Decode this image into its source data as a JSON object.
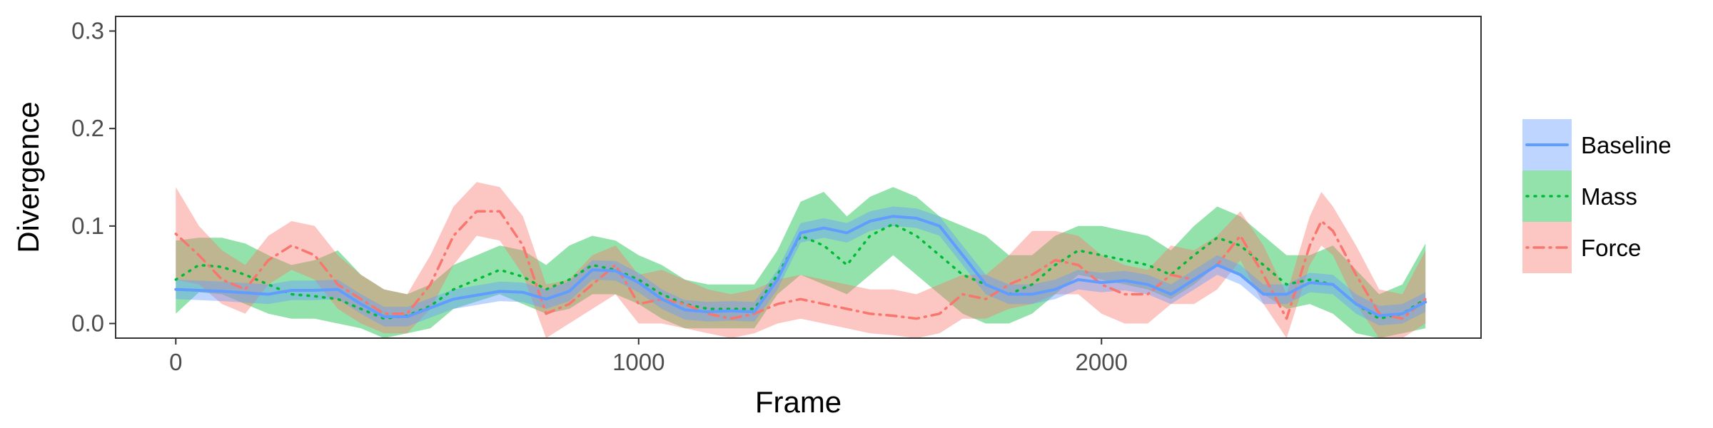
{
  "chart_data": {
    "type": "line",
    "xlabel": "Frame",
    "ylabel": "Divergence",
    "xlim": [
      -130,
      2820
    ],
    "ylim": [
      -0.015,
      0.315
    ],
    "x_ticks": [
      0,
      1000,
      2000
    ],
    "y_ticks": [
      0.0,
      0.1,
      0.2,
      0.3
    ],
    "x_tick_labels": [
      "0",
      "1000",
      "2000"
    ],
    "y_tick_labels": [
      "0.0",
      "0.1",
      "0.2",
      "0.3"
    ],
    "grid": false,
    "legend_position": "right",
    "series": [
      {
        "name": "Baseline",
        "color": "#619CFF",
        "line_style": "solid",
        "points": [
          [
            0,
            0.035,
            0.025,
            0.045
          ],
          [
            100,
            0.033,
            0.023,
            0.043
          ],
          [
            200,
            0.03,
            0.02,
            0.04
          ],
          [
            250,
            0.034,
            0.024,
            0.044
          ],
          [
            300,
            0.034,
            0.024,
            0.044
          ],
          [
            350,
            0.035,
            0.025,
            0.045
          ],
          [
            400,
            0.02,
            0.01,
            0.03
          ],
          [
            450,
            0.007,
            -0.003,
            0.017
          ],
          [
            500,
            0.007,
            -0.003,
            0.017
          ],
          [
            550,
            0.016,
            0.006,
            0.026
          ],
          [
            600,
            0.025,
            0.015,
            0.035
          ],
          [
            700,
            0.033,
            0.023,
            0.043
          ],
          [
            750,
            0.032,
            0.022,
            0.042
          ],
          [
            800,
            0.025,
            0.015,
            0.035
          ],
          [
            850,
            0.033,
            0.023,
            0.043
          ],
          [
            900,
            0.055,
            0.045,
            0.065
          ],
          [
            950,
            0.054,
            0.044,
            0.064
          ],
          [
            1000,
            0.042,
            0.032,
            0.052
          ],
          [
            1050,
            0.025,
            0.015,
            0.035
          ],
          [
            1100,
            0.014,
            0.004,
            0.024
          ],
          [
            1150,
            0.012,
            0.002,
            0.022
          ],
          [
            1200,
            0.013,
            0.003,
            0.023
          ],
          [
            1250,
            0.012,
            0.002,
            0.022
          ],
          [
            1300,
            0.045,
            0.035,
            0.055
          ],
          [
            1350,
            0.093,
            0.083,
            0.103
          ],
          [
            1400,
            0.098,
            0.088,
            0.108
          ],
          [
            1450,
            0.093,
            0.083,
            0.103
          ],
          [
            1500,
            0.105,
            0.095,
            0.115
          ],
          [
            1550,
            0.11,
            0.1,
            0.12
          ],
          [
            1600,
            0.108,
            0.098,
            0.118
          ],
          [
            1650,
            0.1,
            0.09,
            0.11
          ],
          [
            1700,
            0.07,
            0.06,
            0.08
          ],
          [
            1750,
            0.04,
            0.03,
            0.05
          ],
          [
            1800,
            0.03,
            0.02,
            0.04
          ],
          [
            1850,
            0.03,
            0.02,
            0.04
          ],
          [
            1900,
            0.035,
            0.025,
            0.045
          ],
          [
            1950,
            0.045,
            0.035,
            0.055
          ],
          [
            2000,
            0.042,
            0.032,
            0.052
          ],
          [
            2050,
            0.044,
            0.034,
            0.054
          ],
          [
            2100,
            0.04,
            0.03,
            0.05
          ],
          [
            2150,
            0.03,
            0.02,
            0.04
          ],
          [
            2200,
            0.045,
            0.035,
            0.055
          ],
          [
            2250,
            0.06,
            0.05,
            0.07
          ],
          [
            2300,
            0.05,
            0.04,
            0.06
          ],
          [
            2350,
            0.03,
            0.02,
            0.04
          ],
          [
            2400,
            0.03,
            0.02,
            0.04
          ],
          [
            2450,
            0.042,
            0.032,
            0.052
          ],
          [
            2500,
            0.04,
            0.03,
            0.05
          ],
          [
            2550,
            0.02,
            0.01,
            0.03
          ],
          [
            2600,
            0.008,
            -0.002,
            0.018
          ],
          [
            2650,
            0.01,
            0.0,
            0.02
          ],
          [
            2700,
            0.022,
            0.012,
            0.032
          ]
        ]
      },
      {
        "name": "Mass",
        "color": "#00BA38",
        "line_style": "dotted",
        "points": [
          [
            0,
            0.045,
            0.01,
            0.085
          ],
          [
            50,
            0.06,
            0.032,
            0.088
          ],
          [
            100,
            0.058,
            0.03,
            0.088
          ],
          [
            150,
            0.05,
            0.02,
            0.082
          ],
          [
            200,
            0.04,
            0.01,
            0.07
          ],
          [
            250,
            0.03,
            0.005,
            0.06
          ],
          [
            300,
            0.028,
            0.005,
            0.065
          ],
          [
            350,
            0.025,
            0.0,
            0.075
          ],
          [
            400,
            0.015,
            -0.005,
            0.05
          ],
          [
            450,
            0.005,
            -0.015,
            0.035
          ],
          [
            500,
            0.008,
            -0.01,
            0.03
          ],
          [
            550,
            0.018,
            -0.005,
            0.04
          ],
          [
            600,
            0.035,
            0.015,
            0.06
          ],
          [
            700,
            0.055,
            0.03,
            0.08
          ],
          [
            750,
            0.048,
            0.02,
            0.075
          ],
          [
            800,
            0.035,
            0.01,
            0.06
          ],
          [
            850,
            0.045,
            0.015,
            0.08
          ],
          [
            900,
            0.06,
            0.03,
            0.09
          ],
          [
            950,
            0.055,
            0.03,
            0.085
          ],
          [
            1000,
            0.045,
            0.02,
            0.07
          ],
          [
            1050,
            0.03,
            0.005,
            0.06
          ],
          [
            1100,
            0.02,
            -0.005,
            0.045
          ],
          [
            1150,
            0.015,
            -0.005,
            0.04
          ],
          [
            1200,
            0.015,
            -0.005,
            0.04
          ],
          [
            1250,
            0.015,
            -0.005,
            0.04
          ],
          [
            1300,
            0.05,
            0.03,
            0.075
          ],
          [
            1350,
            0.09,
            0.05,
            0.125
          ],
          [
            1400,
            0.08,
            0.04,
            0.135
          ],
          [
            1450,
            0.06,
            0.03,
            0.11
          ],
          [
            1500,
            0.09,
            0.05,
            0.13
          ],
          [
            1550,
            0.102,
            0.07,
            0.14
          ],
          [
            1600,
            0.09,
            0.05,
            0.13
          ],
          [
            1650,
            0.07,
            0.03,
            0.11
          ],
          [
            1700,
            0.05,
            0.01,
            0.1
          ],
          [
            1750,
            0.04,
            0.0,
            0.09
          ],
          [
            1800,
            0.03,
            0.0,
            0.07
          ],
          [
            1850,
            0.04,
            0.01,
            0.07
          ],
          [
            1900,
            0.06,
            0.03,
            0.09
          ],
          [
            1950,
            0.075,
            0.05,
            0.1
          ],
          [
            2000,
            0.07,
            0.045,
            0.1
          ],
          [
            2050,
            0.065,
            0.04,
            0.095
          ],
          [
            2100,
            0.06,
            0.035,
            0.09
          ],
          [
            2150,
            0.05,
            0.025,
            0.075
          ],
          [
            2200,
            0.07,
            0.04,
            0.1
          ],
          [
            2250,
            0.088,
            0.06,
            0.12
          ],
          [
            2300,
            0.08,
            0.05,
            0.11
          ],
          [
            2350,
            0.06,
            0.03,
            0.09
          ],
          [
            2400,
            0.04,
            0.015,
            0.07
          ],
          [
            2450,
            0.045,
            0.02,
            0.07
          ],
          [
            2500,
            0.04,
            0.01,
            0.08
          ],
          [
            2550,
            0.02,
            -0.01,
            0.055
          ],
          [
            2600,
            0.005,
            -0.015,
            0.03
          ],
          [
            2650,
            0.01,
            -0.01,
            0.04
          ],
          [
            2700,
            0.025,
            -0.005,
            0.082
          ]
        ]
      },
      {
        "name": "Force",
        "color": "#F8766D",
        "line_style": "dotdash",
        "points": [
          [
            0,
            0.092,
            0.045,
            0.14
          ],
          [
            50,
            0.07,
            0.04,
            0.1
          ],
          [
            100,
            0.045,
            0.02,
            0.075
          ],
          [
            150,
            0.035,
            0.01,
            0.06
          ],
          [
            200,
            0.065,
            0.04,
            0.09
          ],
          [
            250,
            0.08,
            0.055,
            0.105
          ],
          [
            300,
            0.07,
            0.045,
            0.1
          ],
          [
            350,
            0.04,
            0.015,
            0.07
          ],
          [
            400,
            0.025,
            0.0,
            0.05
          ],
          [
            450,
            0.01,
            -0.01,
            0.035
          ],
          [
            500,
            0.01,
            -0.01,
            0.03
          ],
          [
            550,
            0.04,
            0.015,
            0.07
          ],
          [
            600,
            0.09,
            0.06,
            0.12
          ],
          [
            650,
            0.115,
            0.09,
            0.145
          ],
          [
            700,
            0.115,
            0.085,
            0.14
          ],
          [
            750,
            0.08,
            0.05,
            0.11
          ],
          [
            800,
            0.01,
            -0.015,
            0.04
          ],
          [
            850,
            0.02,
            0.0,
            0.045
          ],
          [
            900,
            0.04,
            0.015,
            0.07
          ],
          [
            950,
            0.06,
            0.03,
            0.08
          ],
          [
            1000,
            0.02,
            0.0,
            0.05
          ],
          [
            1050,
            0.025,
            0.0,
            0.055
          ],
          [
            1100,
            0.02,
            -0.005,
            0.045
          ],
          [
            1150,
            0.01,
            -0.01,
            0.035
          ],
          [
            1200,
            0.005,
            -0.015,
            0.03
          ],
          [
            1250,
            0.01,
            -0.01,
            0.035
          ],
          [
            1300,
            0.02,
            0.0,
            0.045
          ],
          [
            1350,
            0.025,
            0.005,
            0.05
          ],
          [
            1400,
            0.02,
            0.0,
            0.045
          ],
          [
            1450,
            0.015,
            -0.005,
            0.04
          ],
          [
            1500,
            0.01,
            -0.01,
            0.035
          ],
          [
            1550,
            0.008,
            -0.012,
            0.035
          ],
          [
            1600,
            0.005,
            -0.015,
            0.03
          ],
          [
            1650,
            0.01,
            -0.01,
            0.04
          ],
          [
            1700,
            0.03,
            0.005,
            0.05
          ],
          [
            1750,
            0.025,
            0.005,
            0.05
          ],
          [
            1800,
            0.04,
            0.015,
            0.07
          ],
          [
            1850,
            0.05,
            0.02,
            0.095
          ],
          [
            1900,
            0.065,
            0.03,
            0.095
          ],
          [
            1950,
            0.06,
            0.03,
            0.09
          ],
          [
            2000,
            0.04,
            0.01,
            0.07
          ],
          [
            2050,
            0.03,
            0.0,
            0.06
          ],
          [
            2100,
            0.03,
            0.0,
            0.055
          ],
          [
            2150,
            0.05,
            0.02,
            0.08
          ],
          [
            2200,
            0.045,
            0.02,
            0.075
          ],
          [
            2250,
            0.06,
            0.035,
            0.09
          ],
          [
            2300,
            0.09,
            0.065,
            0.115
          ],
          [
            2350,
            0.05,
            0.02,
            0.08
          ],
          [
            2400,
            0.005,
            -0.015,
            0.03
          ],
          [
            2450,
            0.08,
            0.06,
            0.11
          ],
          [
            2475,
            0.105,
            0.08,
            0.135
          ],
          [
            2500,
            0.095,
            0.07,
            0.12
          ],
          [
            2550,
            0.05,
            0.02,
            0.08
          ],
          [
            2600,
            0.01,
            -0.015,
            0.035
          ],
          [
            2650,
            0.005,
            -0.015,
            0.03
          ],
          [
            2700,
            0.025,
            0.0,
            0.075
          ]
        ]
      }
    ]
  }
}
